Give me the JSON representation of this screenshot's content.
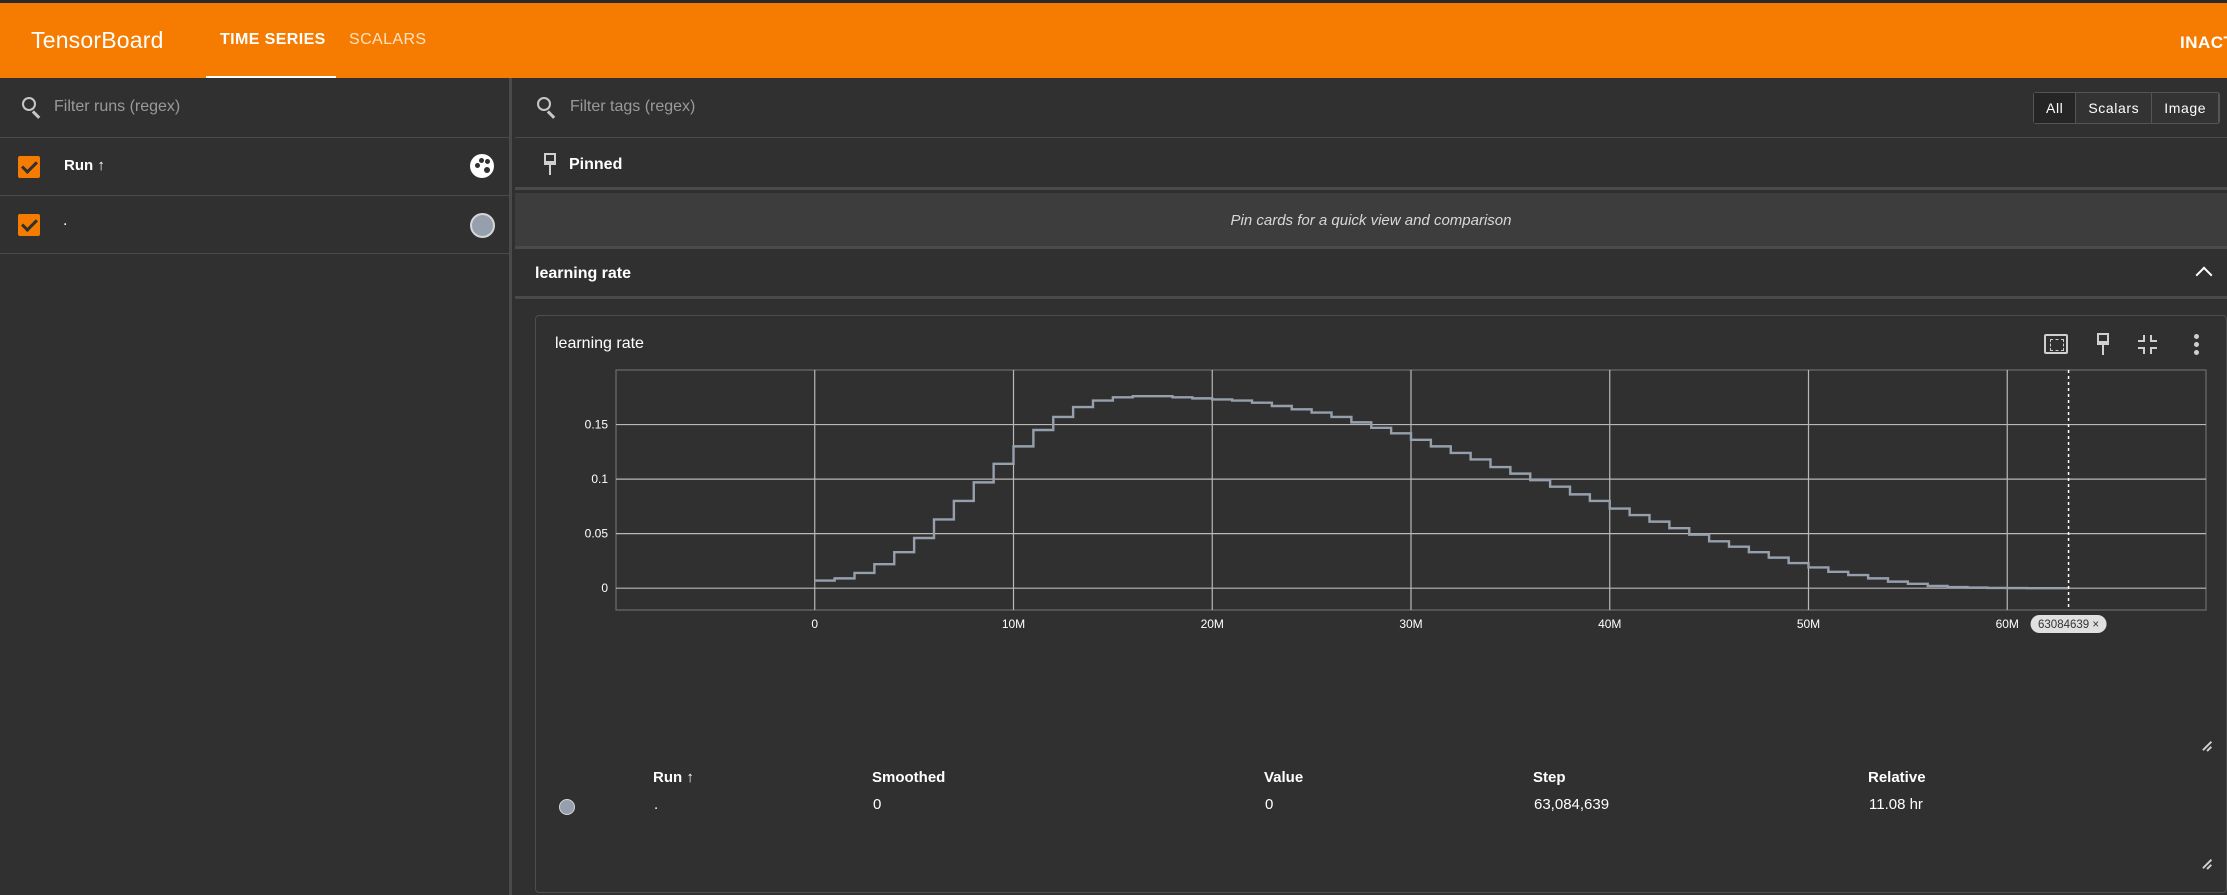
{
  "header": {
    "brand": "TensorBoard",
    "tabs": [
      {
        "label": "TIME SERIES",
        "active": true
      },
      {
        "label": "SCALARS",
        "active": false
      }
    ],
    "status": "INACT",
    "accent_color": "#f57c00"
  },
  "sidebar": {
    "filter_placeholder": "Filter runs (regex)",
    "header_label": "Run ↑",
    "runs": [
      {
        "name": ".",
        "checked": true,
        "color": "#96a0ad"
      }
    ]
  },
  "main": {
    "filter_placeholder": "Filter tags (regex)",
    "type_filters": [
      {
        "label": "All",
        "active": true
      },
      {
        "label": "Scalars",
        "active": false
      },
      {
        "label": "Image",
        "active": false
      }
    ],
    "pinned_label": "Pinned",
    "pinned_hint": "Pin cards for a quick view and comparison",
    "group_label": "learning rate"
  },
  "card": {
    "title": "learning rate",
    "step_badge": "63084639 ×",
    "legend": {
      "headers": [
        "Run ↑",
        "Smoothed",
        "Value",
        "Step",
        "Relative"
      ],
      "rows": [
        {
          "run": ".",
          "smoothed": "0",
          "value": "0",
          "step": "63,084,639",
          "relative": "11.08 hr"
        }
      ]
    }
  },
  "chart_data": {
    "type": "line",
    "title": "learning rate",
    "xlabel": "",
    "ylabel": "",
    "x_ticks": [
      "0",
      "10M",
      "20M",
      "30M",
      "40M",
      "50M",
      "60M"
    ],
    "y_ticks": [
      "0",
      "0.05",
      "0.1",
      "0.15"
    ],
    "xlim": [
      -10000000,
      70000000
    ],
    "ylim": [
      -0.02,
      0.2
    ],
    "grid": true,
    "cursor_step": 63084639,
    "series": [
      {
        "color": "#96a0ad",
        "x": [
          0,
          1000000,
          2000000,
          3000000,
          4000000,
          5000000,
          6000000,
          7000000,
          8000000,
          9000000,
          10000000,
          11000000,
          12000000,
          13000000,
          14000000,
          15000000,
          16000000,
          17000000,
          18000000,
          19000000,
          20000000,
          21000000,
          22000000,
          23000000,
          24000000,
          25000000,
          26000000,
          27000000,
          28000000,
          29000000,
          30000000,
          31000000,
          32000000,
          33000000,
          34000000,
          35000000,
          36000000,
          37000000,
          38000000,
          39000000,
          40000000,
          41000000,
          42000000,
          43000000,
          44000000,
          45000000,
          46000000,
          47000000,
          48000000,
          49000000,
          50000000,
          51000000,
          52000000,
          53000000,
          54000000,
          55000000,
          56000000,
          57000000,
          58000000,
          59000000,
          60000000,
          61000000,
          62000000,
          63084639
        ],
        "y": [
          0.007,
          0.009,
          0.014,
          0.022,
          0.033,
          0.046,
          0.063,
          0.08,
          0.097,
          0.114,
          0.13,
          0.145,
          0.157,
          0.166,
          0.172,
          0.175,
          0.176,
          0.176,
          0.175,
          0.174,
          0.173,
          0.172,
          0.17,
          0.167,
          0.164,
          0.161,
          0.157,
          0.152,
          0.147,
          0.142,
          0.136,
          0.13,
          0.124,
          0.118,
          0.111,
          0.105,
          0.099,
          0.093,
          0.086,
          0.08,
          0.073,
          0.067,
          0.061,
          0.055,
          0.049,
          0.043,
          0.038,
          0.033,
          0.028,
          0.023,
          0.019,
          0.015,
          0.012,
          0.009,
          0.006,
          0.004,
          0.002,
          0.001,
          0.0005,
          0.0002,
          0.0001,
          0.0,
          0.0,
          0.0
        ]
      }
    ]
  }
}
